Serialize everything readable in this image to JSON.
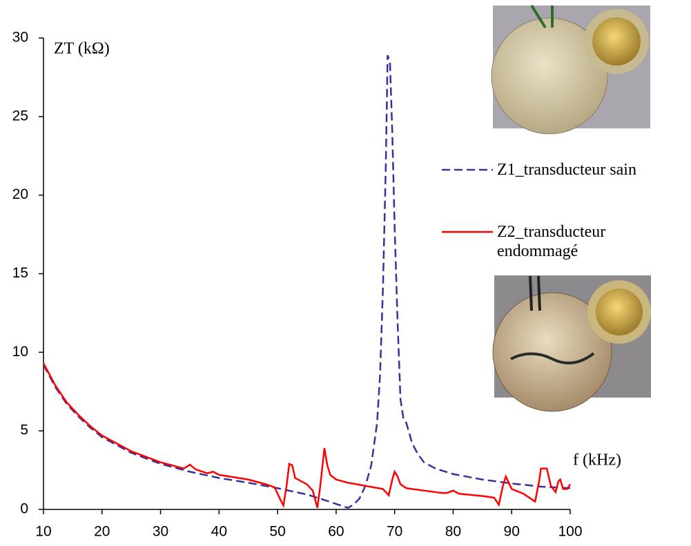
{
  "chart_data": {
    "type": "line",
    "y_label": "ZT (kΩ)",
    "x_label": "f (kHz)",
    "xlim": [
      10,
      100
    ],
    "xticks": [
      10,
      20,
      30,
      40,
      50,
      60,
      70,
      80,
      90,
      100
    ],
    "ylim": [
      0,
      30
    ],
    "yticks": [
      0,
      5,
      10,
      15,
      20,
      25,
      30
    ],
    "series": [
      {
        "name": "Z1_transducteur sain",
        "color": "#33339a",
        "dash": true,
        "x": [
          10,
          12,
          14,
          16,
          18,
          20,
          25,
          30,
          35,
          40,
          45,
          50,
          55,
          58,
          60,
          62,
          63,
          64,
          65,
          66,
          67,
          67.5,
          68,
          68.5,
          68.8,
          69.2,
          69.6,
          70,
          70.5,
          71,
          71.5,
          72,
          73,
          74,
          75,
          77,
          80,
          85,
          90,
          95,
          100
        ],
        "values": [
          9.2,
          7.8,
          6.7,
          5.9,
          5.2,
          4.6,
          3.6,
          2.9,
          2.4,
          2.0,
          1.7,
          1.35,
          0.95,
          0.6,
          0.35,
          0.1,
          0.3,
          0.7,
          1.5,
          2.8,
          5.5,
          8.5,
          14,
          22,
          28.9,
          28.5,
          24,
          18,
          12,
          7,
          5.8,
          5.5,
          4.2,
          3.5,
          3.0,
          2.6,
          2.25,
          1.9,
          1.65,
          1.45,
          1.35
        ]
      },
      {
        "name": "Z2_transducteur endommagé",
        "color": "#ff0000",
        "dash": false,
        "x": [
          10,
          12,
          14,
          16,
          18,
          20,
          25,
          30,
          33,
          34,
          35,
          36,
          38,
          39,
          40,
          45,
          48,
          49.5,
          50.5,
          51,
          51.5,
          52,
          52.5,
          53,
          55,
          56,
          56.8,
          57.3,
          58,
          58.5,
          59,
          60,
          62,
          65,
          68,
          69,
          69.6,
          70,
          70.5,
          71,
          72,
          75,
          78,
          79,
          80,
          81,
          85,
          87,
          87.8,
          88.5,
          89,
          89.5,
          90,
          92,
          94,
          94.7,
          95,
          96,
          96.7,
          97.5,
          98,
          98.3,
          98.8,
          99.5,
          100
        ],
        "values": [
          9.3,
          7.9,
          6.8,
          6.0,
          5.3,
          4.7,
          3.7,
          3.0,
          2.7,
          2.6,
          2.85,
          2.55,
          2.3,
          2.4,
          2.2,
          1.9,
          1.6,
          1.4,
          0.6,
          0.25,
          1.4,
          2.9,
          2.8,
          2.0,
          1.6,
          1.2,
          0.1,
          1.5,
          3.9,
          2.8,
          2.2,
          1.9,
          1.7,
          1.5,
          1.3,
          0.9,
          1.9,
          2.4,
          2.1,
          1.6,
          1.35,
          1.2,
          1.05,
          1.05,
          1.2,
          1.0,
          0.85,
          0.75,
          0.3,
          1.5,
          2.1,
          1.7,
          1.3,
          1.0,
          0.5,
          1.8,
          2.6,
          2.6,
          1.5,
          1.1,
          1.8,
          1.9,
          1.3,
          1.3,
          1.6
        ]
      }
    ]
  }
}
